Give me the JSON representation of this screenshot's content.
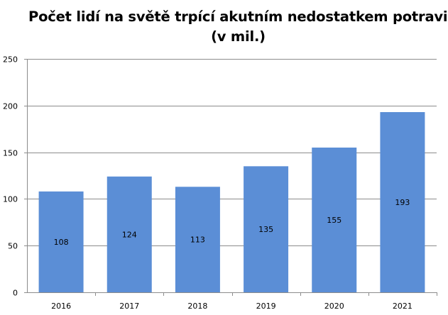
{
  "chart_data": {
    "type": "bar",
    "title_lines": [
      "Počet lidí na světě trpící akutním nedostatkem potravin",
      "(v mil.)"
    ],
    "categories": [
      "2016",
      "2017",
      "2018",
      "2019",
      "2020",
      "2021"
    ],
    "values": [
      108,
      124,
      113,
      135,
      155,
      193
    ],
    "data_labels": [
      "108",
      "124",
      "113",
      "135",
      "155",
      "193"
    ],
    "y_ticks": [
      0,
      50,
      100,
      150,
      200,
      250
    ],
    "y_tick_labels": [
      "0",
      "50",
      "100",
      "150",
      "200",
      "250"
    ],
    "ylim": [
      0,
      250
    ],
    "xlabel": "",
    "ylabel": "",
    "grid": true,
    "legend": "none",
    "bar_color": "#5B8ED6",
    "gridline_color": "#8C8C8C"
  }
}
